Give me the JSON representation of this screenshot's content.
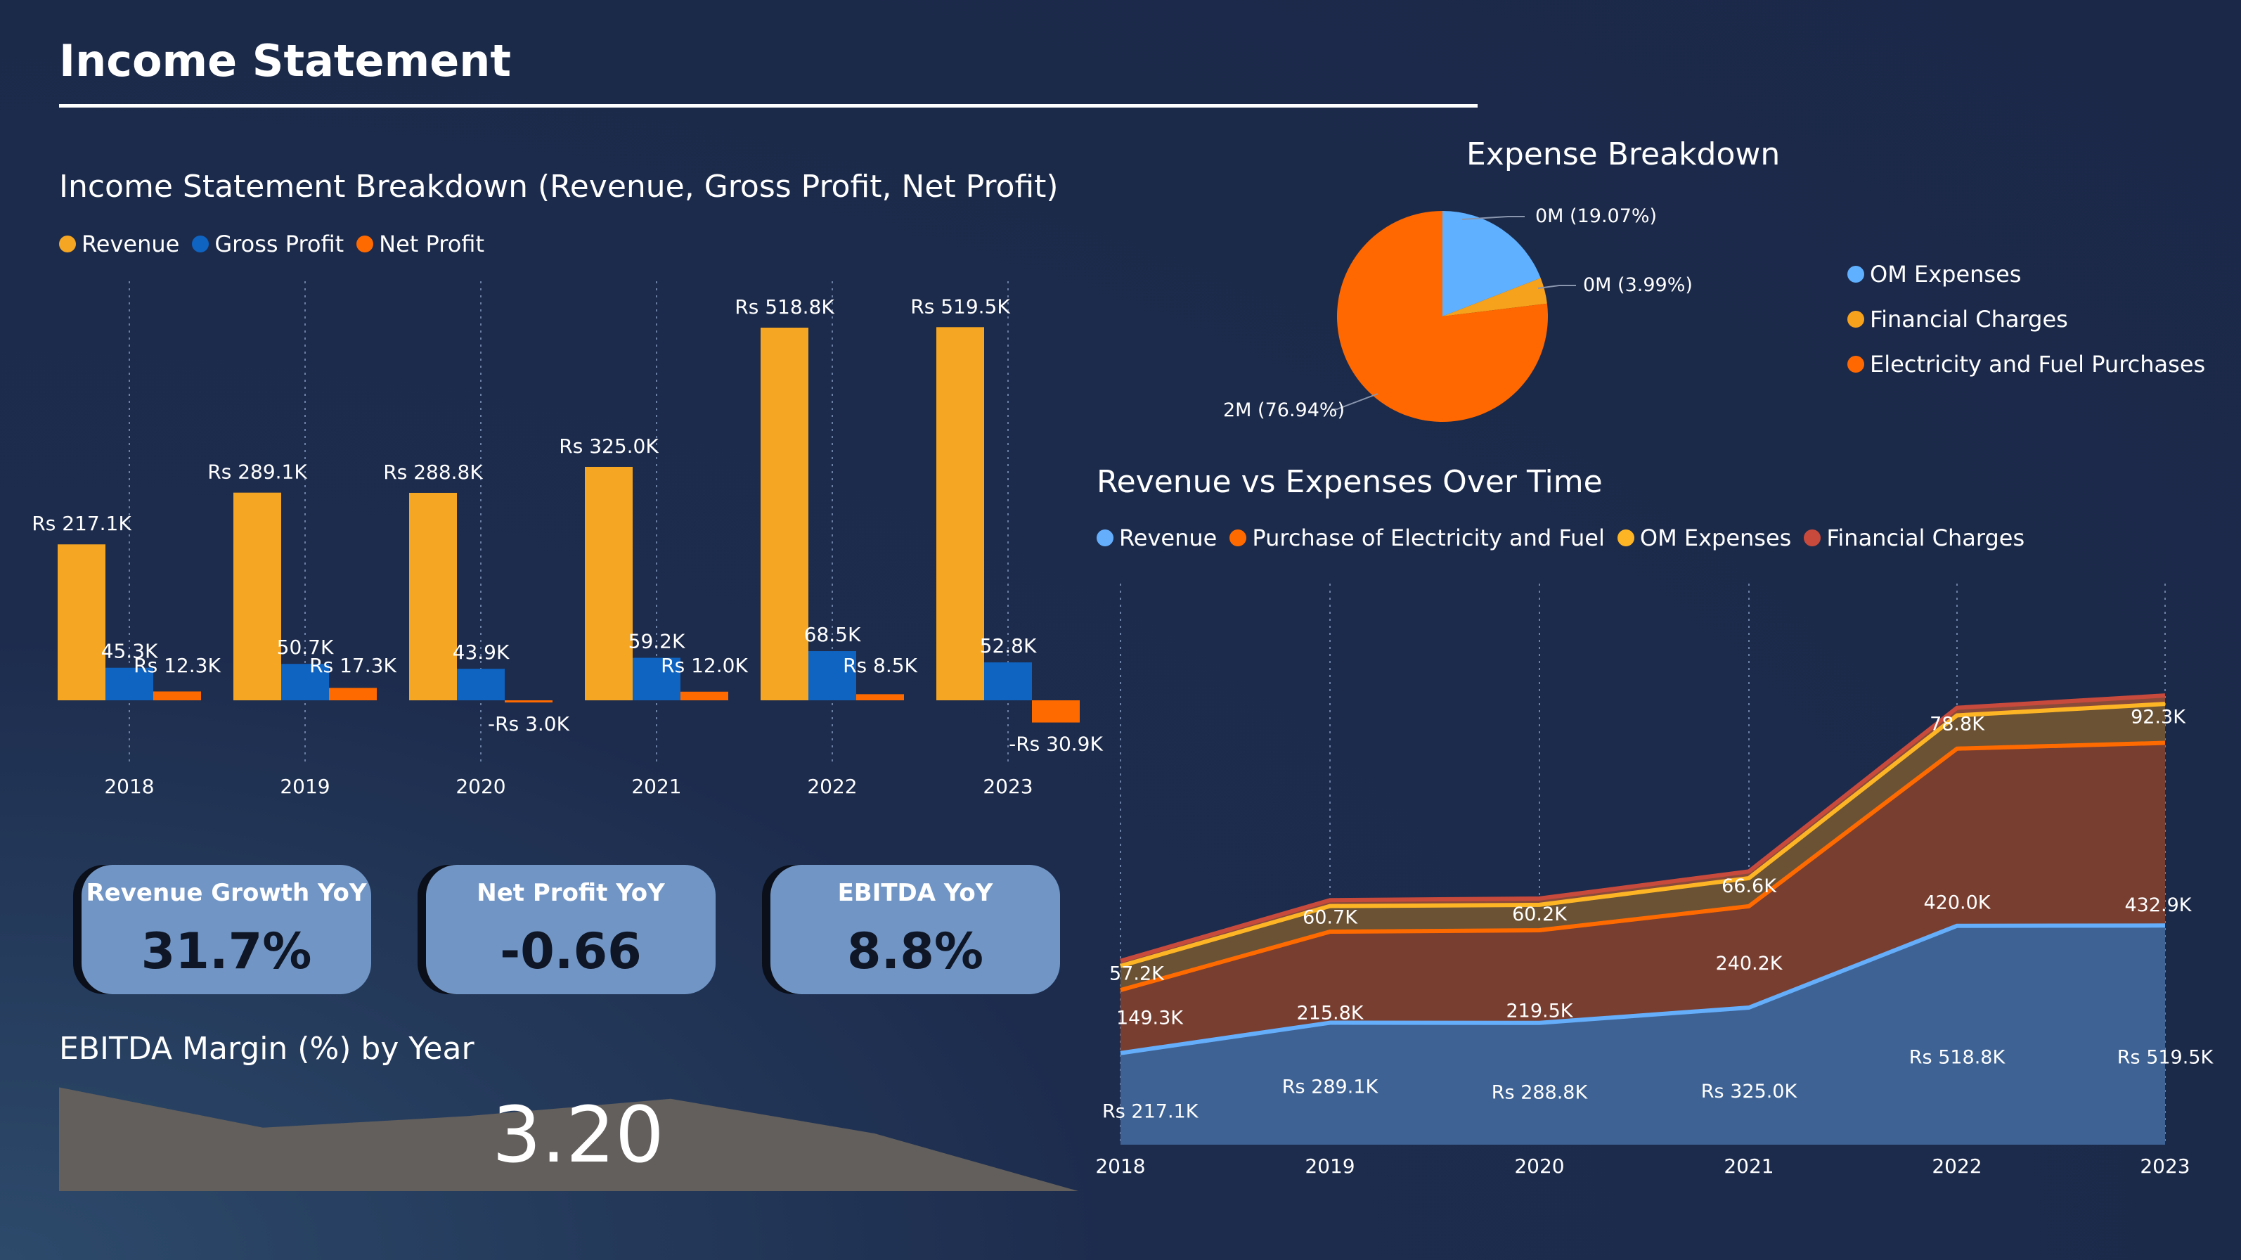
{
  "page": {
    "title": "Income Statement"
  },
  "kpis": [
    {
      "label": "Revenue Growth YoY",
      "value": "31.7%"
    },
    {
      "label": "Net Profit YoY",
      "value": "-0.66"
    },
    {
      "label": "EBITDA YoY",
      "value": "8.8%"
    }
  ],
  "colors": {
    "revenue": "#f5a623",
    "gross_profit": "#0f63c1",
    "net_profit": "#ff6a00",
    "om": "#5fb0ff",
    "financial": "#f7a21c",
    "electricity": "#ff6800",
    "area_revenue_line": "#64aefc",
    "area_purchase_line": "#ff6a00",
    "area_om_line": "#fdb525",
    "area_fin_line": "#c84a3c"
  },
  "chart_data": [
    {
      "type": "bar",
      "title": "Income Statement Breakdown (Revenue, Gross Profit, Net Profit)",
      "legend_position": "top-left",
      "categories": [
        "2018",
        "2019",
        "2020",
        "2021",
        "2022",
        "2023"
      ],
      "series": [
        {
          "name": "Revenue",
          "values": [
            217.1,
            289.1,
            288.8,
            325.0,
            518.8,
            519.5
          ],
          "labels": [
            "Rs 217.1K",
            "Rs 289.1K",
            "Rs 288.8K",
            "Rs 325.0K",
            "Rs 518.8K",
            "Rs 519.5K"
          ]
        },
        {
          "name": "Gross Profit",
          "values": [
            45.3,
            50.7,
            43.9,
            59.2,
            68.5,
            52.8
          ],
          "labels": [
            "45.3K",
            "50.7K",
            "43.9K",
            "59.2K",
            "68.5K",
            "52.8K"
          ]
        },
        {
          "name": "Net Profit",
          "values": [
            12.3,
            17.3,
            -3.0,
            12.0,
            8.5,
            -30.9
          ],
          "labels": [
            "Rs 12.3K",
            "Rs 17.3K",
            "-Rs 3.0K",
            "Rs 12.0K",
            "Rs 8.5K",
            "-Rs 30.9K"
          ]
        }
      ]
    },
    {
      "type": "pie",
      "title": "Expense Breakdown",
      "legend_position": "right",
      "slices": [
        {
          "name": "OM Expenses",
          "percent": 19.07,
          "label": "0M (19.07%)"
        },
        {
          "name": "Financial Charges",
          "percent": 3.99,
          "label": "0M (3.99%)"
        },
        {
          "name": "Electricity and Fuel Purchases",
          "percent": 76.94,
          "label": "2M (76.94%)"
        }
      ]
    },
    {
      "type": "area",
      "title": "Revenue vs Expenses Over Time",
      "legend_position": "top-left",
      "x": [
        "2018",
        "2019",
        "2020",
        "2021",
        "2022",
        "2023"
      ],
      "series": [
        {
          "name": "Revenue",
          "values": [
            217.1,
            289.1,
            288.8,
            325.0,
            518.8,
            519.5
          ],
          "labels": [
            "Rs 217.1K",
            "Rs 289.1K",
            "Rs 288.8K",
            "Rs 325.0K",
            "Rs 518.8K",
            "Rs 519.5K"
          ]
        },
        {
          "name": "Purchase of Electricity and Fuel",
          "values": [
            149.3,
            215.8,
            219.5,
            240.2,
            420.0,
            432.9
          ],
          "labels": [
            "149.3K",
            "215.8K",
            "219.5K",
            "240.2K",
            "420.0K",
            "432.9K"
          ]
        },
        {
          "name": "OM Expenses",
          "values": [
            57.2,
            60.7,
            60.2,
            66.6,
            78.8,
            92.3
          ],
          "labels": [
            "57.2K",
            "60.7K",
            "60.2K",
            "66.6K",
            "78.8K",
            "92.3K"
          ]
        },
        {
          "name": "Financial Charges",
          "values": [
            12.0,
            14.0,
            15.0,
            16.0,
            18.0,
            20.0
          ]
        }
      ]
    },
    {
      "type": "area",
      "title": "EBITDA Margin (%) by Year",
      "value_label": "3.20",
      "values": [
        0.9,
        0.55,
        0.65,
        0.8,
        0.5,
        0.0
      ]
    }
  ]
}
